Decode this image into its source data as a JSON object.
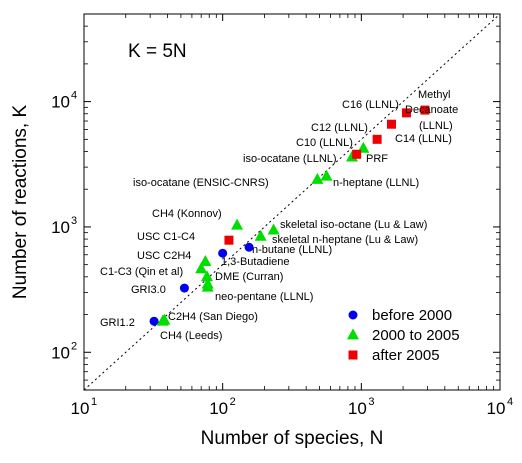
{
  "chart_data": {
    "type": "scatter",
    "xlabel": "Number of species, N",
    "ylabel": "Number of reactions, K",
    "xscale": "log",
    "yscale": "log",
    "xlim": [
      10,
      10000
    ],
    "ylim": [
      50,
      50000
    ],
    "xticks": [
      {
        "value": 10,
        "base": "10",
        "exp": "1"
      },
      {
        "value": 100,
        "base": "10",
        "exp": "2"
      },
      {
        "value": 1000,
        "base": "10",
        "exp": "3"
      },
      {
        "value": 10000,
        "base": "10",
        "exp": "4"
      }
    ],
    "yticks": [
      {
        "value": 100,
        "base": "10",
        "exp": "2"
      },
      {
        "value": 1000,
        "base": "10",
        "exp": "3"
      },
      {
        "value": 10000,
        "base": "10",
        "exp": "4"
      }
    ],
    "annotation": "K = 5N",
    "reference_line": {
      "label": "K = 5N",
      "slope": 5,
      "style": "dotted"
    },
    "grid": false,
    "legend_position": "bottom-right",
    "series": [
      {
        "name": "before 2000",
        "marker": "circle",
        "color": "#0000ee",
        "points": [
          {
            "x": 32,
            "y": 177,
            "label": "GRI1.2"
          },
          {
            "x": 53,
            "y": 325,
            "label": "GRI3.0"
          },
          {
            "x": 100,
            "y": 617,
            "label": "1,3-Butadiene"
          },
          {
            "x": 155,
            "y": 689,
            "label": "n-butane (LLNL)"
          }
        ]
      },
      {
        "name": "2000 to 2005",
        "marker": "triangle",
        "color": "#00dd00",
        "points": [
          {
            "x": 37,
            "y": 177,
            "label": "CH4 (Leeds)"
          },
          {
            "x": 38,
            "y": 180,
            "label": "C2H4 (San Diego)"
          },
          {
            "x": 75,
            "y": 529,
            "label": "USC C2H4"
          },
          {
            "x": 70,
            "y": 463,
            "label": "C1-C3 (Qin et al)"
          },
          {
            "x": 77,
            "y": 400,
            "label": "DME (Curran)"
          },
          {
            "x": 78,
            "y": 350,
            "label": "neo-pentane (LLNL)"
          },
          {
            "x": 78,
            "y": 330,
            "label": ""
          },
          {
            "x": 127,
            "y": 1033,
            "label": "CH4 (Konnov)"
          },
          {
            "x": 233,
            "y": 944,
            "label": "skeletal iso-octane (Lu & Law)"
          },
          {
            "x": 188,
            "y": 842,
            "label": "skeletal n-heptane (Lu & Law)"
          },
          {
            "x": 561,
            "y": 2539,
            "label": "n-heptane (LLNL)"
          },
          {
            "x": 482,
            "y": 2392,
            "label": "iso-ocatane (ENSIC-CNRS)"
          },
          {
            "x": 857,
            "y": 3606,
            "label": "iso-ocatane (LLNL)"
          },
          {
            "x": 1034,
            "y": 4236,
            "label": "PRF"
          }
        ]
      },
      {
        "name": "after 2005",
        "marker": "square",
        "color": "#ee0000",
        "points": [
          {
            "x": 111,
            "y": 784,
            "label": "USC C1-C4"
          },
          {
            "x": 925,
            "y": 3800,
            "label": "C10 (LLNL)"
          },
          {
            "x": 1300,
            "y": 5000,
            "label": "C12 (LLNL)"
          },
          {
            "x": 1650,
            "y": 6600,
            "label": "C14 (LLNL)"
          },
          {
            "x": 2116,
            "y": 8130,
            "label": "C16 (LLNL)"
          },
          {
            "x": 2878,
            "y": 8555,
            "label": "Methyl Decanoate (LLNL)"
          }
        ]
      }
    ],
    "point_labels": [
      {
        "text": "GRI1.2"
      },
      {
        "text": "C2H4 (San Diego)"
      },
      {
        "text": "CH4 (Leeds)"
      },
      {
        "text": "GRI3.0"
      },
      {
        "text": "neo-pentane (LLNL)"
      },
      {
        "text": "DME (Curran)"
      },
      {
        "text": "C1-C3 (Qin et al)"
      },
      {
        "text": "1,3-Butadiene"
      },
      {
        "text": "USC C2H4"
      },
      {
        "text": "n-butane (LLNL)"
      },
      {
        "text": "USC C1-C4"
      },
      {
        "text": "CH4 (Konnov)"
      },
      {
        "text": "skeletal iso-octane (Lu & Law)"
      },
      {
        "text": "skeletal n-heptane (Lu & Law)"
      },
      {
        "text": "iso-ocatane (ENSIC-CNRS)"
      },
      {
        "text": "n-heptane (LLNL)"
      },
      {
        "text": "iso-ocatane (LLNL)"
      },
      {
        "text": "PRF"
      },
      {
        "text": "C10 (LLNL)"
      },
      {
        "text": "C12 (LLNL)"
      },
      {
        "text": "C14 (LLNL)"
      },
      {
        "text": "C16 (LLNL)"
      },
      {
        "text": "Methyl"
      },
      {
        "text": "Decanoate"
      },
      {
        "text": "(LLNL)"
      }
    ]
  }
}
